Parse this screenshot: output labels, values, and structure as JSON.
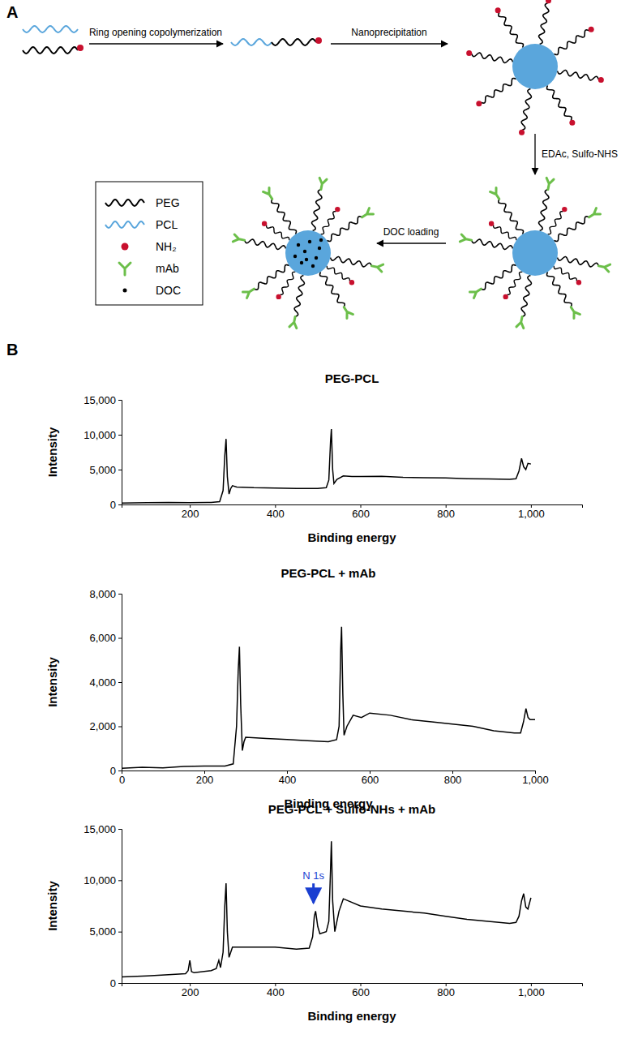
{
  "figure": {
    "panel_labels": [
      "A",
      "B"
    ]
  },
  "diagram": {
    "steps": [
      "Ring opening copolymerization",
      "Nanoprecipitation",
      "EDAc, Sulfo-NHS",
      "DOC loading"
    ],
    "legend": [
      {
        "label": "PEG",
        "color": "#000000"
      },
      {
        "label": "PCL",
        "color": "#5aa6dc"
      },
      {
        "label": "NH₂",
        "color": "#c8102e"
      },
      {
        "label": "mAb",
        "color": "#6cbf4a"
      },
      {
        "label": "DOC",
        "color": "#000000"
      }
    ]
  },
  "chart_data": [
    {
      "type": "line",
      "title": "PEG-PCL",
      "x_label": "Binding energy",
      "y_label": "Intensity",
      "x": [
        40,
        100,
        150,
        200,
        250,
        270,
        278,
        282,
        285,
        288,
        292,
        296,
        300,
        310,
        350,
        400,
        450,
        500,
        520,
        526,
        530,
        532,
        535,
        538,
        545,
        560,
        580,
        600,
        650,
        700,
        750,
        800,
        850,
        900,
        950,
        965,
        972,
        978,
        983,
        988,
        993,
        1000
      ],
      "values": [
        200,
        250,
        300,
        250,
        300,
        400,
        2000,
        7000,
        9400,
        4000,
        1500,
        2300,
        2700,
        2500,
        2400,
        2350,
        2300,
        2300,
        2400,
        3500,
        9000,
        10800,
        5000,
        3000,
        3600,
        4100,
        4000,
        4000,
        4050,
        3900,
        3850,
        3800,
        3700,
        3650,
        3600,
        3700,
        4800,
        6600,
        5400,
        5000,
        5900,
        5800
      ],
      "color": "#000000",
      "xlim": [
        40,
        1120
      ],
      "ylim": [
        0,
        15000
      ],
      "xticks": [
        200,
        400,
        600,
        800,
        {
          "value": 1000,
          "label": "1,000"
        }
      ],
      "yticks": [
        0,
        {
          "value": 5000,
          "label": "5,000"
        },
        {
          "value": 10000,
          "label": "10,000"
        },
        {
          "value": 15000,
          "label": "15,000"
        }
      ]
    },
    {
      "type": "line",
      "title": "PEG-PCL + mAb",
      "x_label": "Binding energy",
      "y_label": "Intensity",
      "x": [
        0,
        50,
        100,
        150,
        200,
        250,
        270,
        278,
        282,
        285,
        288,
        292,
        296,
        300,
        350,
        400,
        450,
        500,
        520,
        526,
        530,
        532,
        535,
        538,
        545,
        560,
        580,
        600,
        650,
        700,
        750,
        800,
        850,
        900,
        950,
        965,
        972,
        978,
        983,
        988,
        993,
        1000
      ],
      "values": [
        100,
        150,
        120,
        180,
        200,
        200,
        300,
        2000,
        4500,
        5600,
        3000,
        900,
        1300,
        1500,
        1450,
        1400,
        1350,
        1300,
        1400,
        2000,
        5500,
        6500,
        3500,
        1600,
        2000,
        2500,
        2400,
        2600,
        2500,
        2300,
        2200,
        2100,
        2000,
        1800,
        1700,
        1700,
        2200,
        2800,
        2400,
        2300,
        2300,
        2300
      ],
      "color": "#000000",
      "xlim": [
        0,
        1000
      ],
      "ylim": [
        0,
        8000
      ],
      "xticks": [
        0,
        200,
        400,
        600,
        800,
        {
          "value": 1000,
          "label": "1,000"
        }
      ],
      "yticks": [
        0,
        {
          "value": 2000,
          "label": "2,000"
        },
        {
          "value": 4000,
          "label": "4,000"
        },
        {
          "value": 6000,
          "label": "6,000"
        },
        {
          "value": 8000,
          "label": "8,000"
        }
      ]
    },
    {
      "type": "line",
      "title": "PEG-PCL + Sulfo-NHs + mAb",
      "x_label": "Binding energy",
      "y_label": "Intensity",
      "x": [
        40,
        100,
        150,
        190,
        196,
        200,
        204,
        210,
        250,
        262,
        268,
        272,
        278,
        282,
        285,
        288,
        292,
        296,
        300,
        350,
        400,
        450,
        480,
        488,
        492,
        495,
        500,
        505,
        520,
        526,
        530,
        532,
        535,
        540,
        550,
        560,
        600,
        650,
        700,
        750,
        800,
        850,
        900,
        950,
        965,
        972,
        978,
        983,
        988,
        993,
        1000
      ],
      "values": [
        600,
        700,
        800,
        900,
        1200,
        2200,
        1100,
        1000,
        1200,
        1400,
        2200,
        1500,
        3000,
        7500,
        9700,
        5000,
        2500,
        3000,
        3500,
        3500,
        3500,
        3300,
        3400,
        4500,
        6500,
        7000,
        5500,
        4800,
        5000,
        6000,
        11000,
        13800,
        8000,
        5000,
        7000,
        8200,
        7500,
        7200,
        7000,
        6800,
        6500,
        6200,
        6000,
        5800,
        5900,
        6500,
        8000,
        8700,
        7400,
        7200,
        8300
      ],
      "color": "#000000",
      "xlim": [
        40,
        1120
      ],
      "ylim": [
        0,
        15000
      ],
      "xticks": [
        200,
        400,
        600,
        800,
        {
          "value": 1000,
          "label": "1,000"
        }
      ],
      "yticks": [
        0,
        {
          "value": 5000,
          "label": "5,000"
        },
        {
          "value": 10000,
          "label": "10,000"
        },
        {
          "value": 15000,
          "label": "15,000"
        }
      ],
      "annotations": [
        {
          "text": "N 1s",
          "x": 490,
          "y": 7800,
          "color": "#1a3fd1"
        }
      ]
    }
  ]
}
